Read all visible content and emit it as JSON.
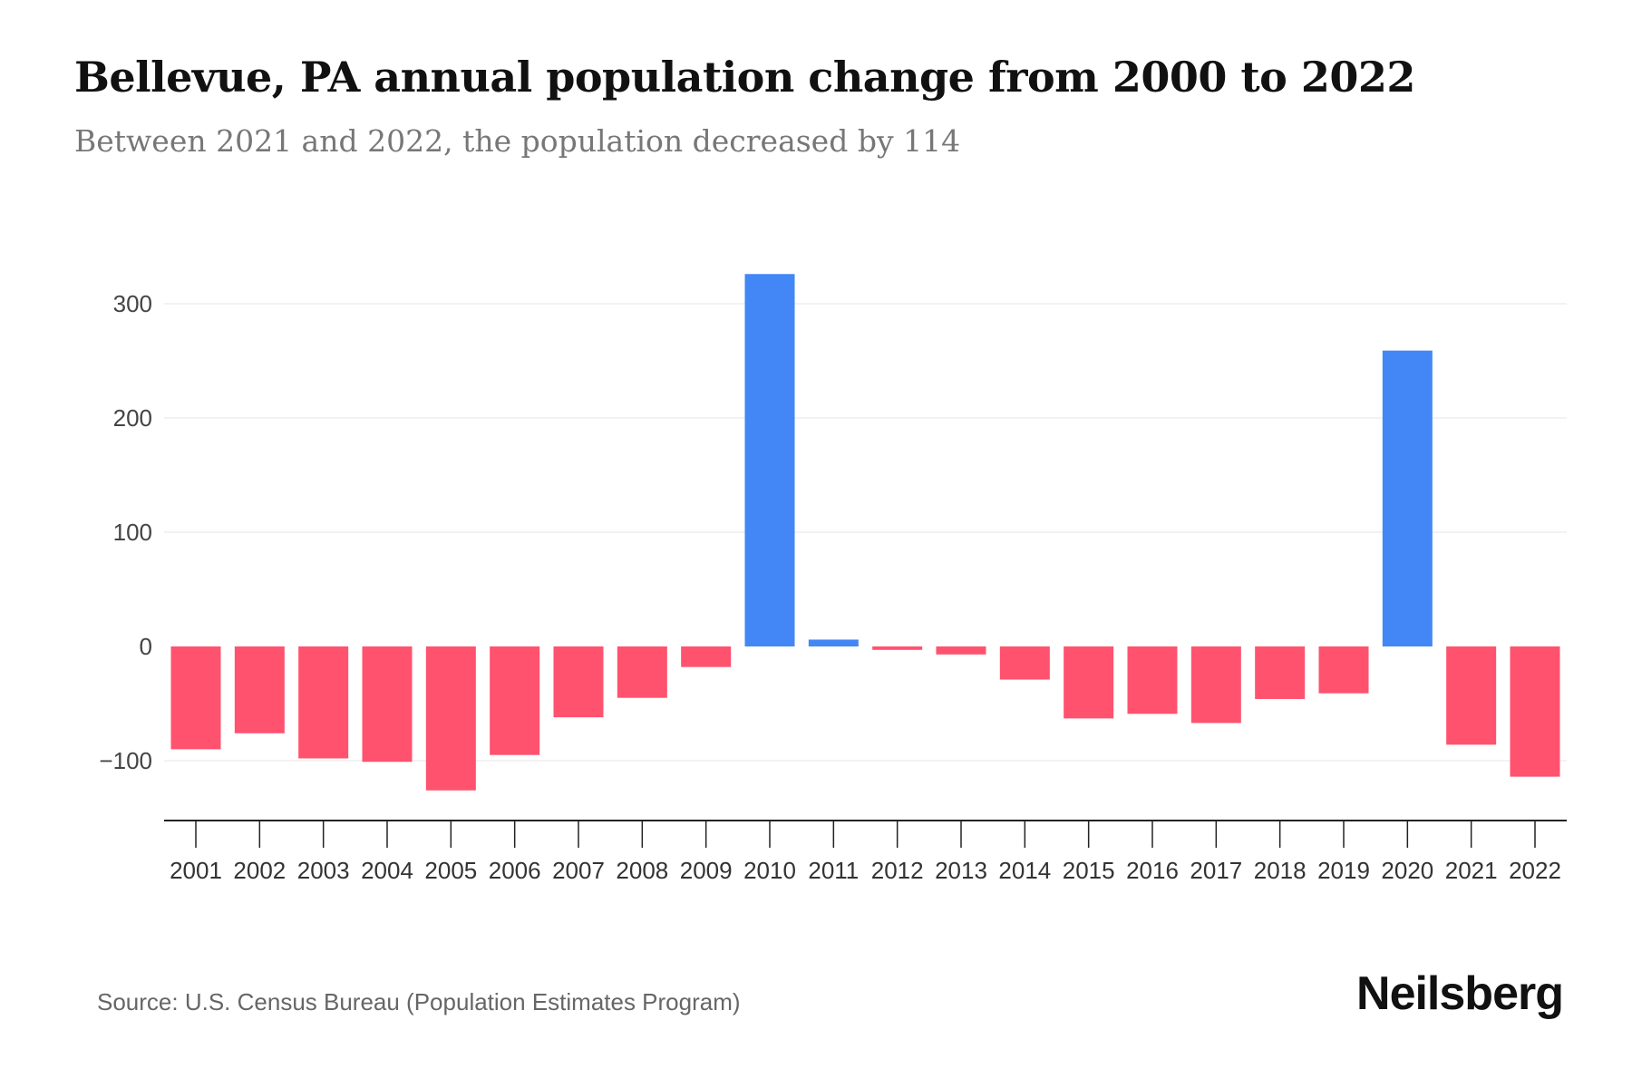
{
  "title": "Bellevue, PA annual population change from 2000 to 2022",
  "subtitle": "Between 2021 and 2022, the population decreased by 114",
  "source": "Source: U.S. Census Bureau (Population Estimates Program)",
  "logo": "Neilsberg",
  "colors": {
    "positive": "#4287F5",
    "negative": "#FF526E"
  },
  "chart_data": {
    "type": "bar",
    "title": "Bellevue, PA annual population change from 2000 to 2022",
    "xlabel": "",
    "ylabel": "",
    "categories": [
      "2001",
      "2002",
      "2003",
      "2004",
      "2005",
      "2006",
      "2007",
      "2008",
      "2009",
      "2010",
      "2011",
      "2012",
      "2013",
      "2014",
      "2015",
      "2016",
      "2017",
      "2018",
      "2019",
      "2020",
      "2021",
      "2022"
    ],
    "values": [
      -90,
      -76,
      -98,
      -101,
      -126,
      -95,
      -62,
      -45,
      -18,
      326,
      6,
      -3,
      -7,
      -29,
      -63,
      -59,
      -67,
      -46,
      -41,
      259,
      -86,
      -114
    ],
    "ylim": [
      -152,
      340
    ],
    "yticks": [
      {
        "value": 300,
        "label": "300"
      },
      {
        "value": 200,
        "label": "200"
      },
      {
        "value": 100,
        "label": "100"
      },
      {
        "value": 0,
        "label": "0"
      },
      {
        "value": -100,
        "label": "−100"
      }
    ],
    "grid": true,
    "legend": "none"
  }
}
